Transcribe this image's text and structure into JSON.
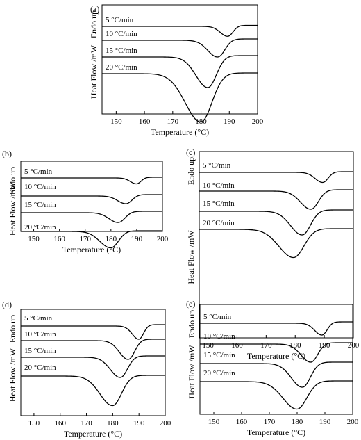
{
  "chart_data": [
    {
      "panel": "(a)",
      "type": "line",
      "xlabel": "Temperature (°C)",
      "ylabel": "Heat Flow /mW",
      "endo_label": "Endo up",
      "xlim": [
        145,
        200
      ],
      "xticks": [
        150,
        160,
        170,
        180,
        190,
        200
      ],
      "series": [
        {
          "name": "5 °C/min",
          "peak_temperature": 189.5
        },
        {
          "name": "10 °C/min",
          "peak_temperature": 186.0
        },
        {
          "name": "15 °C/min",
          "peak_temperature": 182.5
        },
        {
          "name": "20 °C/min",
          "peak_temperature": 180.0
        }
      ]
    },
    {
      "panel": "(b)",
      "type": "line",
      "xlabel": "Temperature (°C)",
      "ylabel": "Heat Flow /mW",
      "endo_label": "Endo up",
      "xlim": [
        145,
        200
      ],
      "xticks": [
        150,
        160,
        170,
        180,
        190,
        200
      ],
      "series": [
        {
          "name": "5 °C/min",
          "peak_temperature": 190.0
        },
        {
          "name": "10 °C/min",
          "peak_temperature": 186.0
        },
        {
          "name": "15 °C/min",
          "peak_temperature": 183.0
        },
        {
          "name": "20 °C/min",
          "peak_temperature": 180.0
        }
      ]
    },
    {
      "panel": "(c)",
      "type": "line",
      "xlabel": "Temperature (°C)",
      "ylabel": "Heat Flow /mW",
      "endo_label": "Endo up",
      "xlim": [
        147,
        200
      ],
      "xticks": [
        150,
        160,
        170,
        180,
        190,
        200
      ],
      "series": [
        {
          "name": "5 °C/min",
          "peak_temperature": 189.5
        },
        {
          "name": "10 °C/min",
          "peak_temperature": 185.5
        },
        {
          "name": "15 °C/min",
          "peak_temperature": 182.5
        },
        {
          "name": "20 °C/min",
          "peak_temperature": 179.5
        }
      ]
    },
    {
      "panel": "(d)",
      "type": "line",
      "xlabel": "Temperature (°C)",
      "ylabel": "Heat Flow /mW",
      "endo_label": "Endo up",
      "xlim": [
        145,
        200
      ],
      "xticks": [
        150,
        160,
        170,
        180,
        190,
        200
      ],
      "series": [
        {
          "name": "5 °C/min",
          "peak_temperature": 190.0
        },
        {
          "name": "10 °C/min",
          "peak_temperature": 186.0
        },
        {
          "name": "15 °C/min",
          "peak_temperature": 183.0
        },
        {
          "name": "20 °C/min",
          "peak_temperature": 180.0
        }
      ]
    },
    {
      "panel": "(e)",
      "type": "line",
      "xlabel": "Temperature (°C)",
      "ylabel": "Heat Flow /mW",
      "endo_label": "Endo up",
      "xlim": [
        145,
        200
      ],
      "xticks": [
        150,
        160,
        170,
        180,
        190,
        200
      ],
      "series": [
        {
          "name": "5 °C/min",
          "peak_temperature": 189.0
        },
        {
          "name": "10 °C/min",
          "peak_temperature": 185.0
        },
        {
          "name": "15 °C/min",
          "peak_temperature": 182.0
        },
        {
          "name": "20 °C/min",
          "peak_temperature": 180.0
        }
      ]
    }
  ]
}
